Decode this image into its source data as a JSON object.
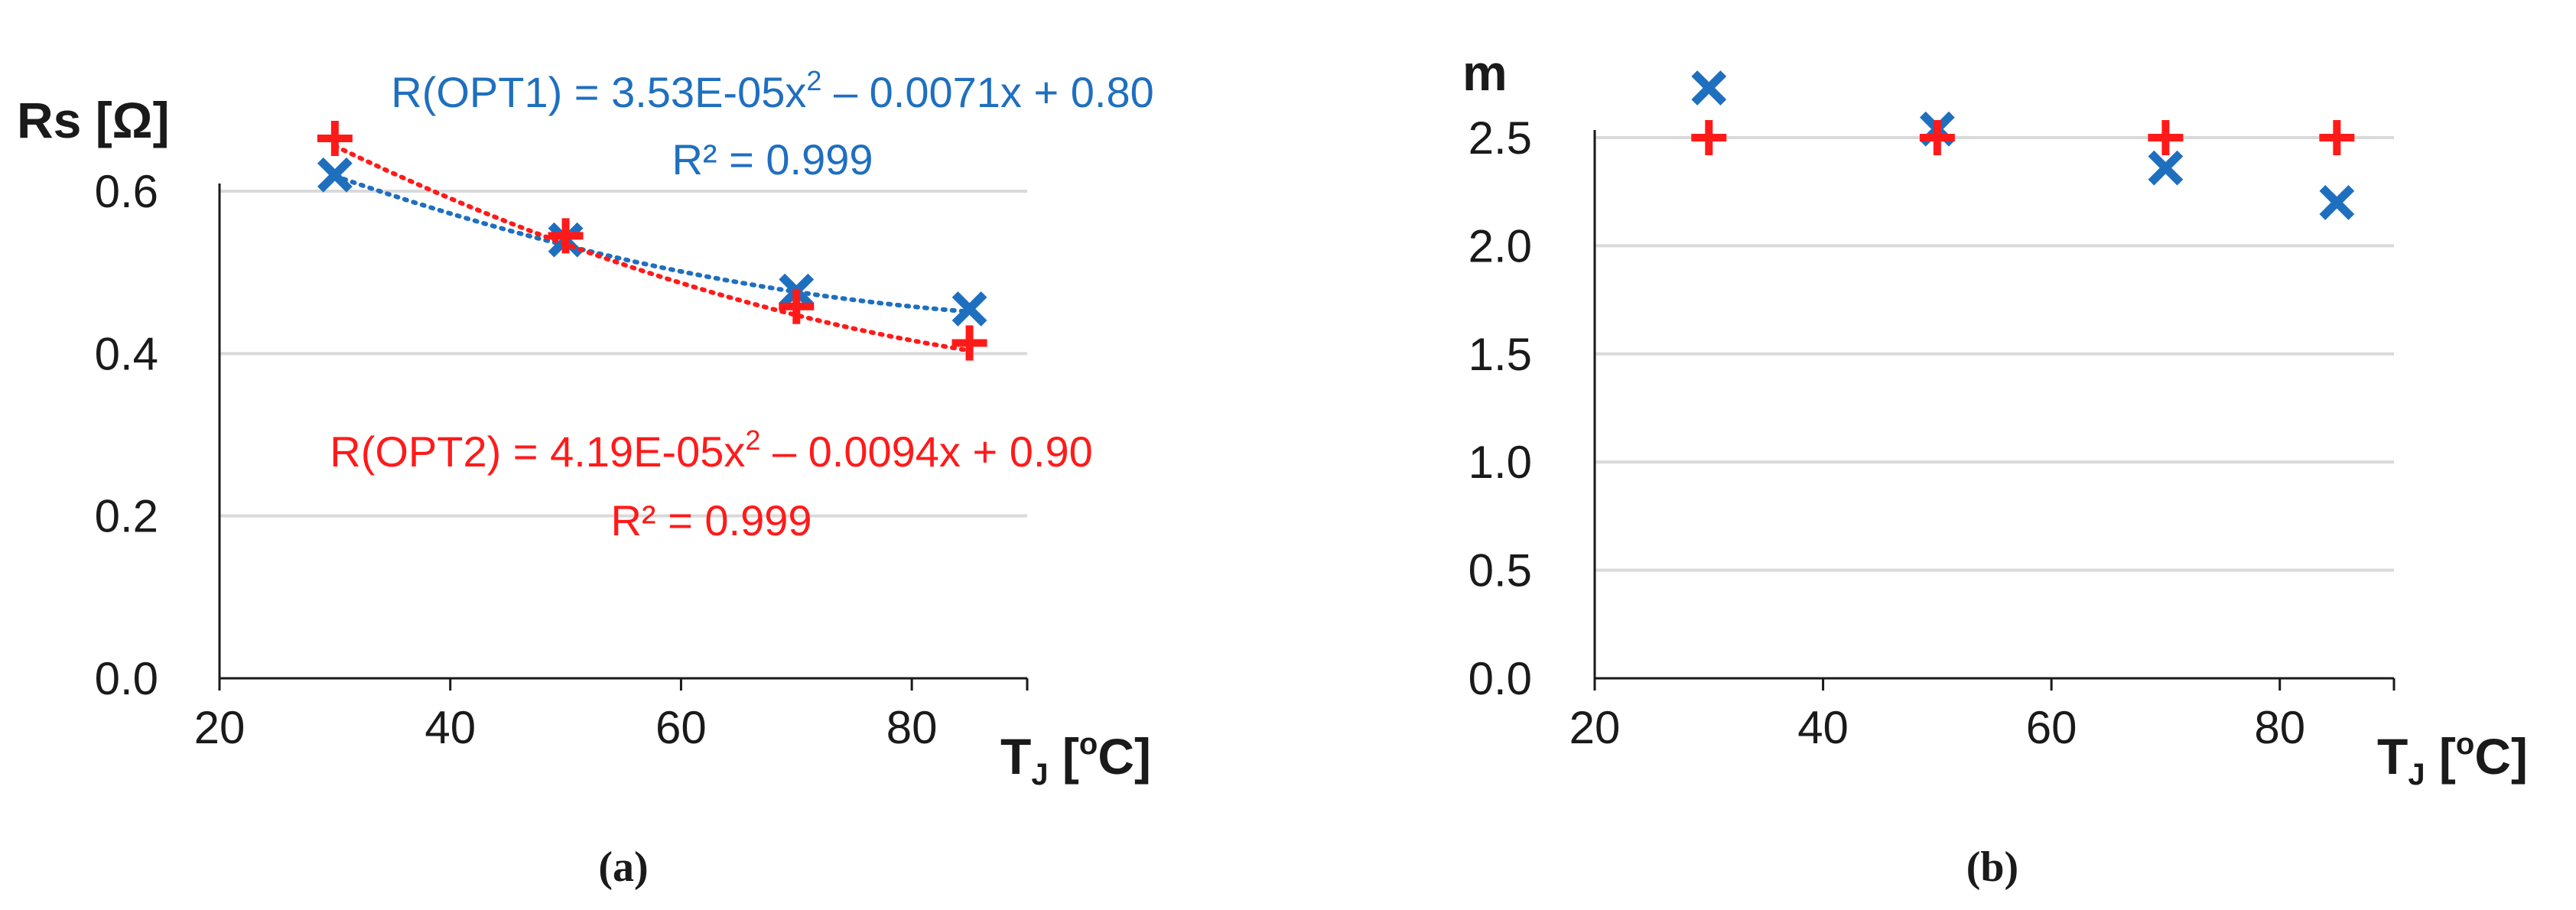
{
  "colors": {
    "opt1": "#1f6fbf",
    "opt2": "#ff1a1a",
    "axis": "#1a1a1a",
    "grid": "#d9d9d9"
  },
  "chart_data": [
    {
      "panel": "a",
      "caption": "(a)",
      "type": "scatter",
      "ylabel": "Rs [Ω]",
      "xlabel_main": "T",
      "xlabel_sub": "J",
      "xlabel_unit": " [",
      "xlabel_deg": "o",
      "xlabel_end": "C]",
      "xlim": [
        20,
        90
      ],
      "ylim": [
        0,
        0.6
      ],
      "xticks": [
        "20",
        "40",
        "60",
        "80"
      ],
      "yticks": [
        "0.0",
        "0.2",
        "0.4",
        "0.6"
      ],
      "grid": true,
      "series": [
        {
          "marker": "x",
          "color": "#1f6fbf",
          "trendline": true,
          "x": [
            30,
            50,
            70,
            85
          ],
          "y": [
            0.62,
            0.54,
            0.477,
            0.455
          ],
          "fit": [
            3.53e-05,
            -0.0071,
            0.8
          ],
          "equation_main": "R(OPT1) = 3.53E-05x",
          "equation_exp": "2",
          "equation_rest": " – 0.0071x + 0.80",
          "r2": "R² = 0.999"
        },
        {
          "marker": "+",
          "color": "#ff1a1a",
          "trendline": true,
          "x": [
            30,
            50,
            70,
            85
          ],
          "y": [
            0.665,
            0.545,
            0.458,
            0.413
          ],
          "fit": [
            4.19e-05,
            -0.0094,
            0.9
          ],
          "equation_main": "R(OPT2) = 4.19E-05x",
          "equation_exp": "2",
          "equation_rest": " – 0.0094x + 0.90",
          "r2": "R² = 0.999"
        }
      ]
    },
    {
      "panel": "b",
      "caption": "(b)",
      "type": "scatter",
      "ylabel": "m",
      "xlabel_main": "T",
      "xlabel_sub": "J",
      "xlabel_unit": " [",
      "xlabel_deg": "o",
      "xlabel_end": "C]",
      "xlim": [
        20,
        90
      ],
      "ylim": [
        0,
        2.5
      ],
      "xticks": [
        "20",
        "40",
        "60",
        "80"
      ],
      "yticks": [
        "0.0",
        "0.5",
        "1.0",
        "1.5",
        "2.0",
        "2.5"
      ],
      "grid": true,
      "series": [
        {
          "marker": "x",
          "color": "#1f6fbf",
          "trendline": false,
          "x": [
            30,
            50,
            70,
            85
          ],
          "y": [
            2.73,
            2.54,
            2.36,
            2.2
          ]
        },
        {
          "marker": "+",
          "color": "#ff1a1a",
          "trendline": false,
          "x": [
            30,
            50,
            70,
            85
          ],
          "y": [
            2.5,
            2.5,
            2.5,
            2.5
          ]
        }
      ]
    }
  ]
}
